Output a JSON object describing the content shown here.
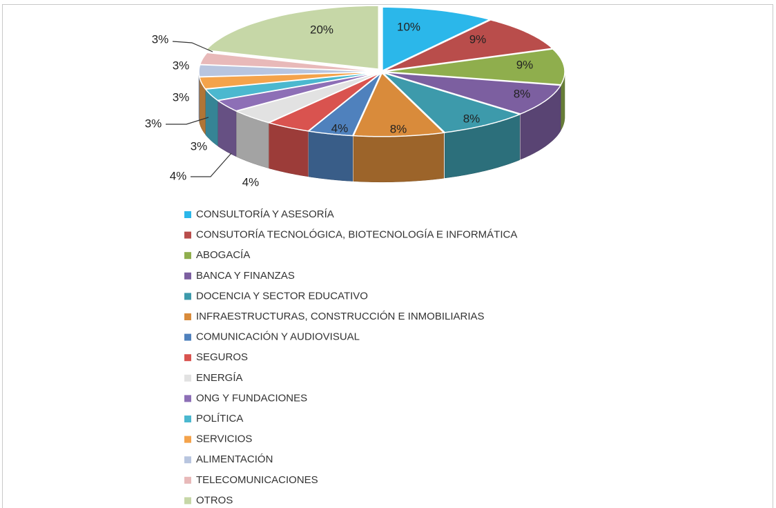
{
  "chart_data": {
    "type": "pie",
    "categories": [
      "CONSULTORÍA Y ASESORÍA",
      "CONSUTORÍA TECNOLÓGICA, BIOTECNOLOGÍA E INFORMÁTICA",
      "ABOGACÍA",
      "BANCA Y FINANZAS",
      "DOCENCIA Y SECTOR EDUCATIVO",
      "INFRAESTRUCTURAS, CONSTRUCCIÓN E INMOBILIARIAS",
      "COMUNICACIÓN Y AUDIOVISUAL",
      "SEGUROS",
      "ENERGÍA",
      "ONG Y FUNDACIONES",
      "POLÍTICA",
      "SERVICIOS",
      "ALIMENTACIÓN",
      "TELECOMUNICACIONES",
      "OTROS"
    ],
    "values": [
      10,
      9,
      9,
      8,
      8,
      8,
      4,
      4,
      4,
      3,
      3,
      3,
      3,
      3,
      20
    ],
    "value_labels": [
      "10%",
      "9%",
      "9%",
      "8%",
      "8%",
      "8%",
      "4%",
      "4%",
      "4%",
      "3%",
      "3%",
      "3%",
      "3%",
      "3%",
      "20%"
    ],
    "colors": [
      "#2bb7ea",
      "#b94d4b",
      "#8fae4d",
      "#7c5fa0",
      "#3d9aab",
      "#d98b3b",
      "#4f81bd",
      "#d9534f",
      "#e2e2e2",
      "#8d6fb6",
      "#4bb8cf",
      "#f4a34b",
      "#b8c5df",
      "#e8b9b9",
      "#c6d7a7"
    ],
    "legend": "bottom"
  }
}
